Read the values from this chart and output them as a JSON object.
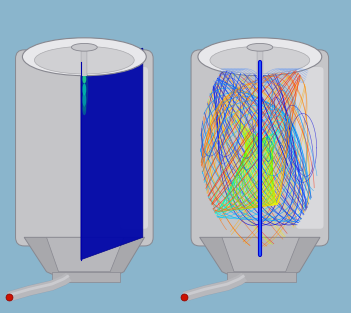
{
  "fig_width": 3.51,
  "fig_height": 3.13,
  "dpi": 100,
  "bg_color": "#8ab5cc",
  "tank_gray": "#c5c5c8",
  "tank_dark_gray": "#a8a8ac",
  "tank_light": "#dcdcdf",
  "tank_white": "#e8e8eb",
  "contour_blue_dark": "#0008a0",
  "contour_blue": "#0010c8",
  "jet_orange": "#dd6600",
  "jet_green": "#00cc44",
  "jet_cyan": "#00ccbb",
  "pipe_gray": "#b0b0b4",
  "pipe_blue": "#3344bb",
  "inlet_red": "#cc1100",
  "streamline_palette": [
    "#0000dd",
    "#0022ee",
    "#0055ff",
    "#0099ff",
    "#00ccff",
    "#00ffee",
    "#00ff88",
    "#44ff00",
    "#88ff00",
    "#bbff00",
    "#ffee00",
    "#ffaa00",
    "#ff6600",
    "#ff2200",
    "#dd0000"
  ]
}
